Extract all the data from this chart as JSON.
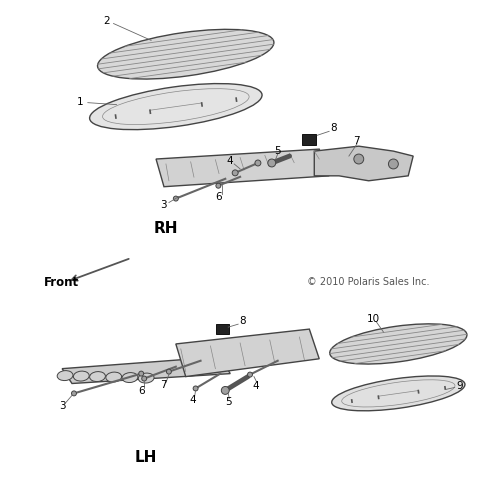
{
  "bg_color": "#ffffff",
  "copyright": "© 2010 Polaris Sales Inc.",
  "rh_label": "RH",
  "lh_label": "LH",
  "front_label": "Front",
  "text_color": "#000000",
  "line_color": "#555555",
  "part_color": "#c8c8c8",
  "edge_color": "#444444"
}
